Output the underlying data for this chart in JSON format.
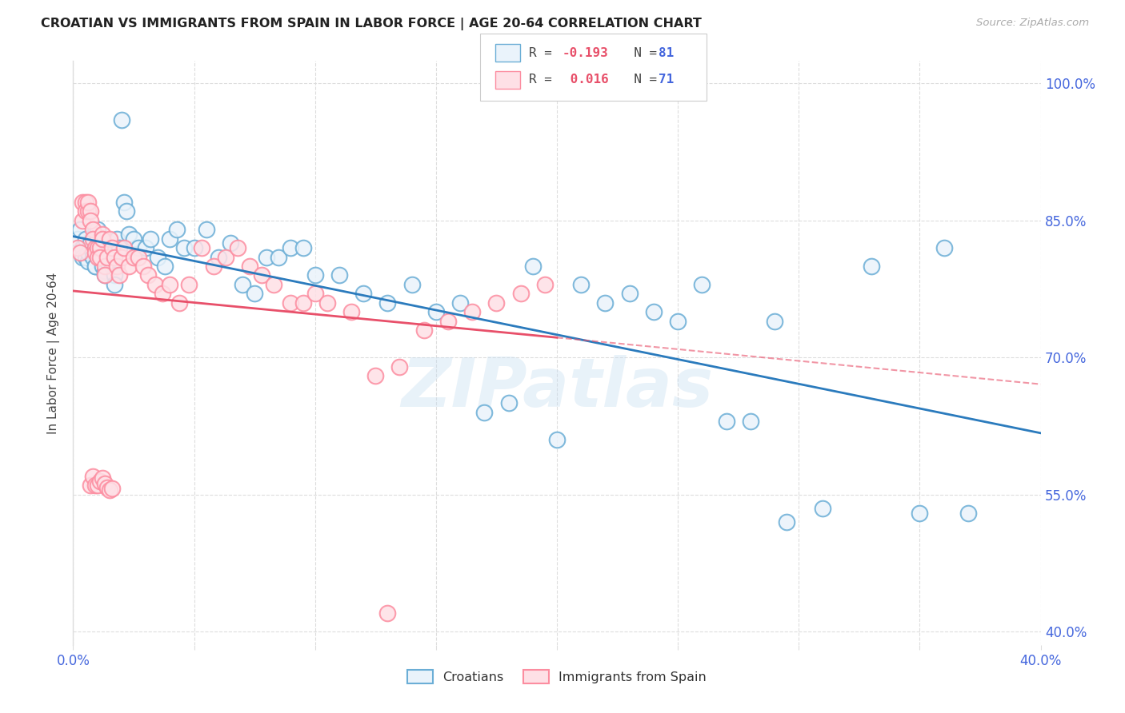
{
  "title": "CROATIAN VS IMMIGRANTS FROM SPAIN IN LABOR FORCE | AGE 20-64 CORRELATION CHART",
  "source_text": "Source: ZipAtlas.com",
  "ylabel": "In Labor Force | Age 20-64",
  "xlim": [
    0.0,
    0.4
  ],
  "ylim": [
    0.385,
    1.025
  ],
  "xtick_vals": [
    0.0,
    0.05,
    0.1,
    0.15,
    0.2,
    0.25,
    0.3,
    0.35,
    0.4
  ],
  "xtick_labels": [
    "0.0%",
    "",
    "",
    "",
    "",
    "",
    "",
    "",
    "40.0%"
  ],
  "ytick_positions": [
    1.0,
    0.85,
    0.7,
    0.55,
    0.4
  ],
  "ytick_labels": [
    "100.0%",
    "85.0%",
    "70.0%",
    "55.0%",
    "40.0%"
  ],
  "blue_face_color": "#EAF3FB",
  "blue_edge_color": "#6BAED6",
  "pink_face_color": "#FEE0E6",
  "pink_edge_color": "#FC8DA0",
  "blue_line_color": "#2B7BBD",
  "pink_line_color": "#E8506A",
  "axis_tick_color": "#4466DD",
  "grid_color": "#DDDDDD",
  "label_croatians": "Croatians",
  "label_immigrants": "Immigrants from Spain",
  "watermark": "ZIPatlas",
  "legend_R_blue_label": "R = ",
  "legend_R_blue_val": "-0.193",
  "legend_N_blue_label": "N = ",
  "legend_N_blue_val": "81",
  "legend_R_pink_label": "R = ",
  "legend_R_pink_val": "0.016",
  "legend_N_pink_label": "N = ",
  "legend_N_pink_val": "71",
  "blue_x": [
    0.002,
    0.003,
    0.004,
    0.004,
    0.005,
    0.005,
    0.006,
    0.006,
    0.007,
    0.007,
    0.008,
    0.008,
    0.009,
    0.009,
    0.01,
    0.01,
    0.011,
    0.011,
    0.012,
    0.012,
    0.013,
    0.013,
    0.014,
    0.014,
    0.015,
    0.015,
    0.016,
    0.016,
    0.017,
    0.017,
    0.018,
    0.019,
    0.02,
    0.021,
    0.022,
    0.023,
    0.025,
    0.027,
    0.03,
    0.032,
    0.035,
    0.038,
    0.04,
    0.043,
    0.046,
    0.05,
    0.055,
    0.06,
    0.065,
    0.07,
    0.075,
    0.08,
    0.085,
    0.09,
    0.095,
    0.1,
    0.11,
    0.12,
    0.13,
    0.14,
    0.15,
    0.16,
    0.17,
    0.18,
    0.19,
    0.2,
    0.21,
    0.22,
    0.23,
    0.24,
    0.25,
    0.26,
    0.27,
    0.28,
    0.29,
    0.295,
    0.31,
    0.33,
    0.35,
    0.36,
    0.37
  ],
  "blue_y": [
    0.83,
    0.84,
    0.82,
    0.81,
    0.81,
    0.83,
    0.805,
    0.815,
    0.82,
    0.825,
    0.815,
    0.81,
    0.8,
    0.8,
    0.83,
    0.84,
    0.815,
    0.82,
    0.81,
    0.8,
    0.795,
    0.79,
    0.805,
    0.815,
    0.825,
    0.82,
    0.81,
    0.8,
    0.79,
    0.78,
    0.83,
    0.82,
    0.96,
    0.87,
    0.86,
    0.835,
    0.83,
    0.82,
    0.82,
    0.83,
    0.81,
    0.8,
    0.83,
    0.84,
    0.82,
    0.82,
    0.84,
    0.81,
    0.825,
    0.78,
    0.77,
    0.81,
    0.81,
    0.82,
    0.82,
    0.79,
    0.79,
    0.77,
    0.76,
    0.78,
    0.75,
    0.76,
    0.64,
    0.65,
    0.8,
    0.61,
    0.78,
    0.76,
    0.77,
    0.75,
    0.74,
    0.78,
    0.63,
    0.63,
    0.74,
    0.52,
    0.535,
    0.8,
    0.53,
    0.82,
    0.53
  ],
  "pink_x": [
    0.002,
    0.003,
    0.004,
    0.004,
    0.005,
    0.005,
    0.006,
    0.006,
    0.007,
    0.007,
    0.008,
    0.008,
    0.009,
    0.009,
    0.01,
    0.01,
    0.011,
    0.011,
    0.012,
    0.012,
    0.013,
    0.013,
    0.014,
    0.015,
    0.016,
    0.017,
    0.018,
    0.019,
    0.02,
    0.021,
    0.023,
    0.025,
    0.027,
    0.029,
    0.031,
    0.034,
    0.037,
    0.04,
    0.044,
    0.048,
    0.053,
    0.058,
    0.063,
    0.068,
    0.073,
    0.078,
    0.083,
    0.09,
    0.095,
    0.1,
    0.105,
    0.115,
    0.125,
    0.135,
    0.145,
    0.155,
    0.165,
    0.175,
    0.185,
    0.195,
    0.007,
    0.008,
    0.009,
    0.01,
    0.011,
    0.012,
    0.013,
    0.014,
    0.015,
    0.016,
    0.13
  ],
  "pink_y": [
    0.82,
    0.815,
    0.85,
    0.87,
    0.87,
    0.86,
    0.86,
    0.87,
    0.86,
    0.85,
    0.84,
    0.83,
    0.82,
    0.815,
    0.82,
    0.81,
    0.82,
    0.81,
    0.835,
    0.83,
    0.8,
    0.79,
    0.81,
    0.83,
    0.82,
    0.81,
    0.8,
    0.79,
    0.81,
    0.82,
    0.8,
    0.81,
    0.81,
    0.8,
    0.79,
    0.78,
    0.77,
    0.78,
    0.76,
    0.78,
    0.82,
    0.8,
    0.81,
    0.82,
    0.8,
    0.79,
    0.78,
    0.76,
    0.76,
    0.77,
    0.76,
    0.75,
    0.68,
    0.69,
    0.73,
    0.74,
    0.75,
    0.76,
    0.77,
    0.78,
    0.56,
    0.57,
    0.56,
    0.56,
    0.565,
    0.568,
    0.562,
    0.558,
    0.555,
    0.557,
    0.42
  ]
}
